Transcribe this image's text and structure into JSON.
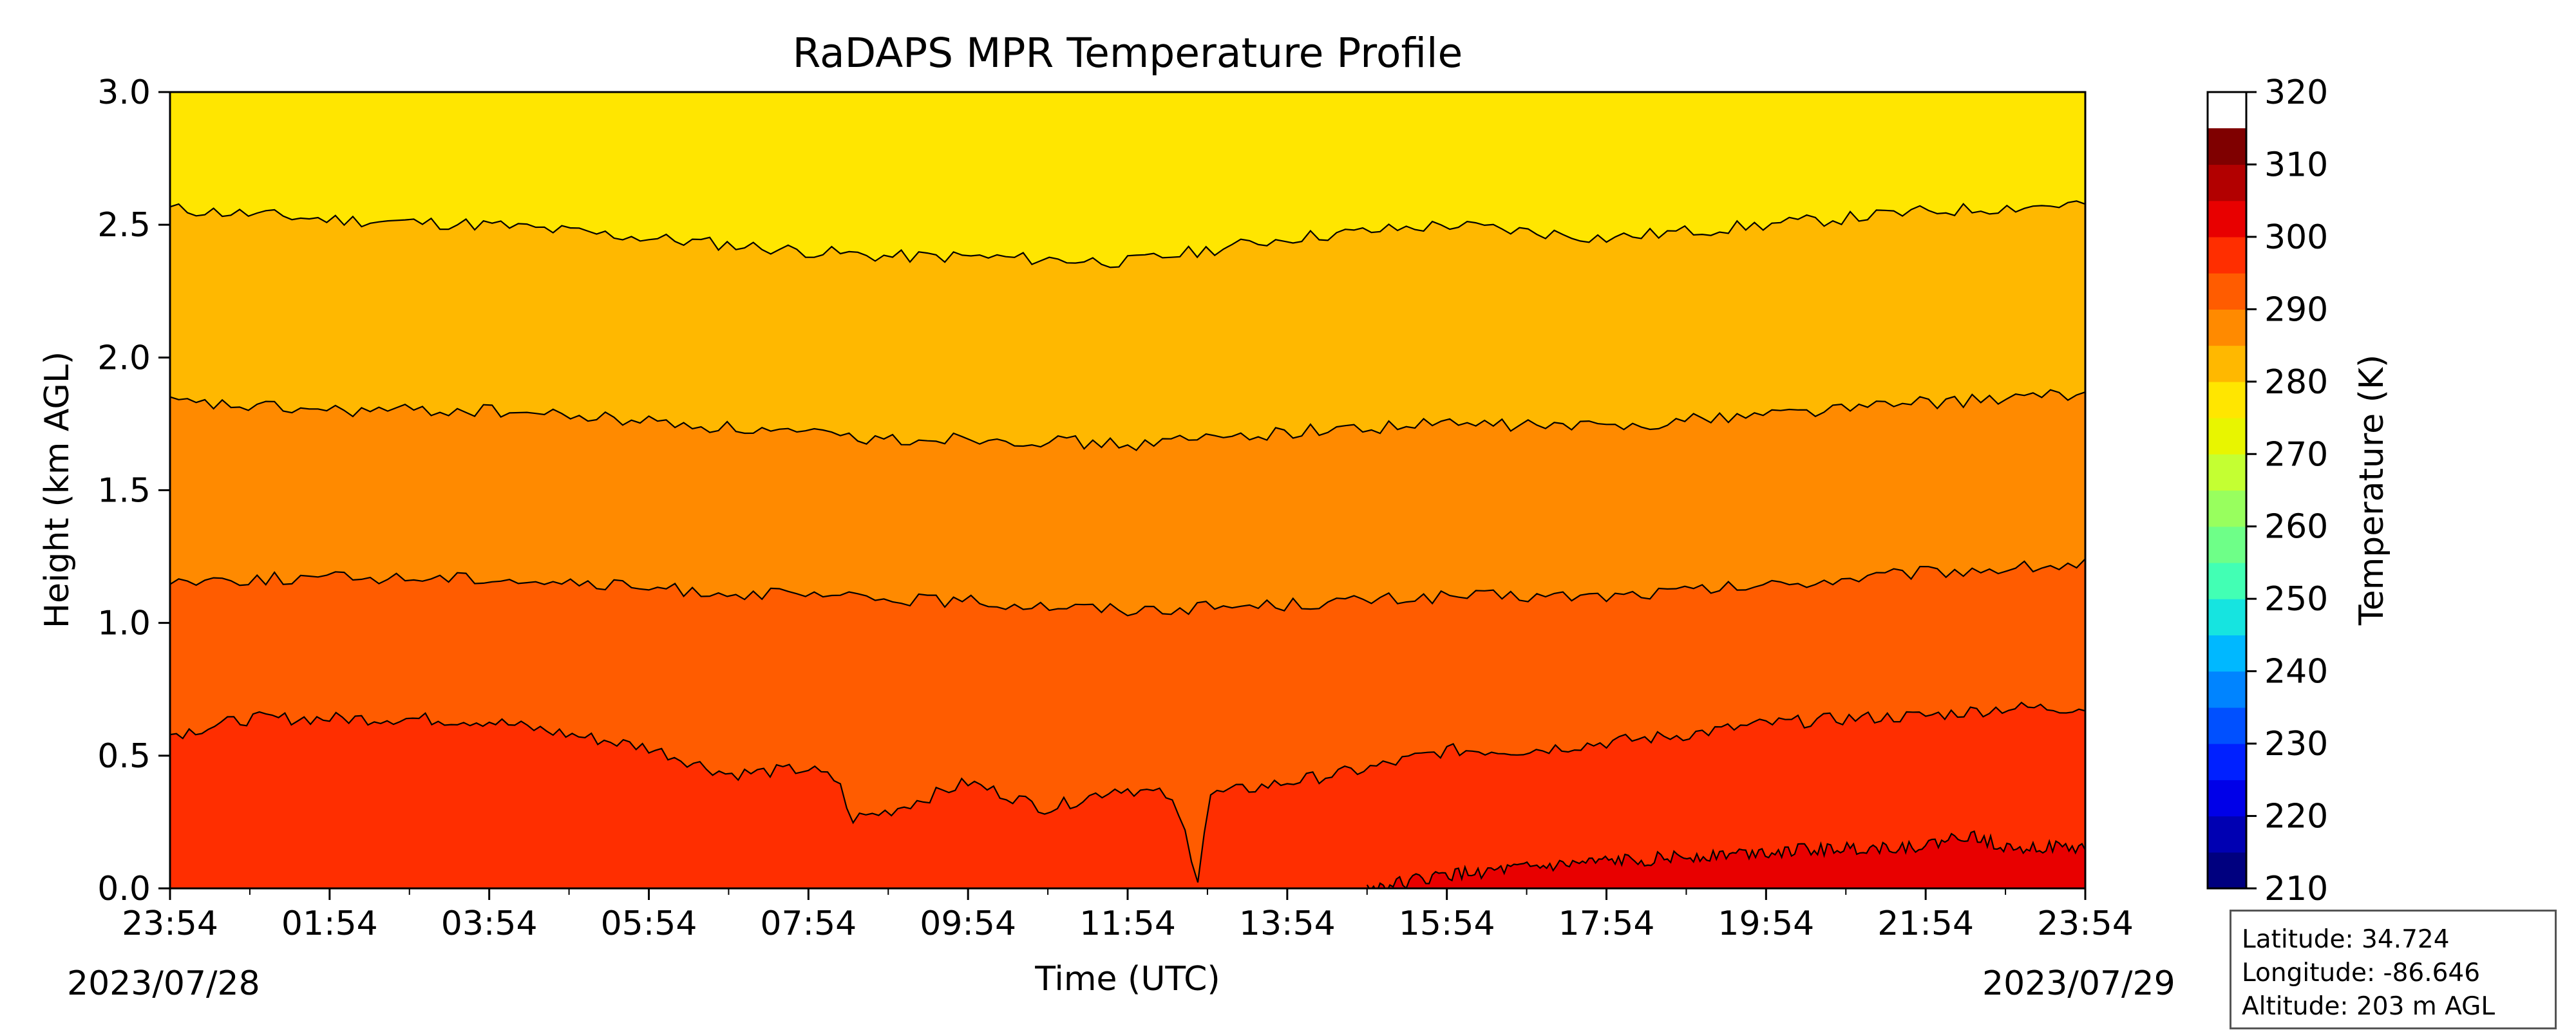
{
  "chart_data": {
    "type": "heatmap",
    "subtype": "filled-contour",
    "title": "RaDAPS MPR Temperature Profile",
    "xlabel": "Time (UTC)",
    "ylabel": "Height (km AGL)",
    "xticks": [
      "23:54",
      "01:54",
      "03:54",
      "05:54",
      "07:54",
      "09:54",
      "11:54",
      "13:54",
      "15:54",
      "17:54",
      "19:54",
      "21:54",
      "23:54"
    ],
    "date_labels": {
      "start": "2023/07/28",
      "end": "2023/07/29"
    },
    "yticks": [
      "0.0",
      "0.5",
      "1.0",
      "1.5",
      "2.0",
      "2.5",
      "3.0"
    ],
    "xlim_hours": [
      0,
      24
    ],
    "ylim": [
      0,
      3.0
    ],
    "colorbar": {
      "label": "Temperature (K)",
      "range": [
        210,
        320
      ],
      "ticks": [
        "210",
        "220",
        "230",
        "240",
        "250",
        "260",
        "270",
        "280",
        "290",
        "300",
        "310",
        "320"
      ],
      "colormap": "jet",
      "levels": [
        210,
        215,
        220,
        225,
        230,
        235,
        240,
        245,
        250,
        255,
        260,
        265,
        270,
        275,
        280,
        285,
        290,
        295,
        300,
        305,
        310,
        315,
        320
      ],
      "colors": [
        "#00007f",
        "#0000b2",
        "#0000e8",
        "#0020ff",
        "#0050ff",
        "#0084ff",
        "#00b8ff",
        "#16e4e0",
        "#42ffb4",
        "#6eff88",
        "#98ff5e",
        "#c4ff32",
        "#e8f500",
        "#ffe600",
        "#ffb800",
        "#ff8a00",
        "#ff5c00",
        "#ff2e00",
        "#e80000",
        "#b20000",
        "#7f0000"
      ]
    },
    "contour_bands": [
      {
        "range": "280-285 K",
        "color": "#ffe600",
        "height_km_range": [
          2.5,
          3.0
        ]
      },
      {
        "range": "285-290 K",
        "color": "#ffb800",
        "height_km_range": [
          1.8,
          2.5
        ]
      },
      {
        "range": "290-295 K",
        "color": "#ff8a00",
        "height_km_range": [
          1.15,
          1.8
        ]
      },
      {
        "range": "295-300 K",
        "color": "#ff5c00",
        "height_km_range": [
          0.6,
          1.15
        ]
      },
      {
        "range": "300-305 K",
        "color": "#ff2e00",
        "height_km_range": [
          0.0,
          0.6
        ]
      },
      {
        "range": "305-310 K",
        "color": "#e80000",
        "height_km_range": [
          0.0,
          0.2
        ]
      }
    ],
    "contour_lines": [
      {
        "name": "c285",
        "x_hours": [
          0,
          2,
          4,
          6,
          8,
          9,
          10,
          12,
          14,
          16,
          18,
          20,
          22,
          24
        ],
        "y_km": [
          2.56,
          2.52,
          2.5,
          2.45,
          2.4,
          2.38,
          2.38,
          2.36,
          2.45,
          2.5,
          2.45,
          2.5,
          2.55,
          2.58
        ]
      },
      {
        "name": "c290",
        "x_hours": [
          0,
          2,
          4,
          6,
          8,
          9,
          10,
          12,
          14,
          16,
          18,
          20,
          22,
          24
        ],
        "y_km": [
          1.83,
          1.8,
          1.8,
          1.76,
          1.71,
          1.69,
          1.7,
          1.67,
          1.72,
          1.75,
          1.74,
          1.79,
          1.83,
          1.86
        ]
      },
      {
        "name": "c295",
        "x_hours": [
          0,
          2,
          4,
          6,
          8,
          9,
          10,
          12,
          14,
          16,
          18,
          20,
          22,
          24
        ],
        "y_km": [
          1.16,
          1.17,
          1.17,
          1.13,
          1.1,
          1.09,
          1.08,
          1.05,
          1.07,
          1.1,
          1.1,
          1.14,
          1.19,
          1.22
        ]
      },
      {
        "name": "c300",
        "x_hours": [
          0,
          1,
          2,
          3,
          4,
          5,
          6,
          7,
          8,
          8.4,
          8.5,
          9,
          10,
          11,
          11.9,
          12.5,
          12.7,
          12.9,
          13,
          14,
          15,
          16,
          17,
          18,
          19,
          20,
          21,
          22,
          23,
          24
        ],
        "y_km": [
          0.58,
          0.64,
          0.64,
          0.64,
          0.63,
          0.58,
          0.53,
          0.43,
          0.45,
          0.4,
          0.26,
          0.29,
          0.4,
          0.3,
          0.38,
          0.35,
          0.23,
          0.02,
          0.35,
          0.4,
          0.45,
          0.52,
          0.52,
          0.55,
          0.58,
          0.62,
          0.64,
          0.65,
          0.68,
          0.68
        ]
      },
      {
        "name": "c305",
        "x_hours": [
          15,
          16,
          18,
          20,
          22,
          22.5,
          23,
          24
        ],
        "y_km": [
          0.0,
          0.05,
          0.1,
          0.14,
          0.16,
          0.2,
          0.16,
          0.15
        ]
      }
    ]
  },
  "site_info": {
    "latitude": "Latitude: 34.724",
    "longitude": "Longitude: -86.646",
    "altitude": "Altitude: 203 m AGL"
  }
}
